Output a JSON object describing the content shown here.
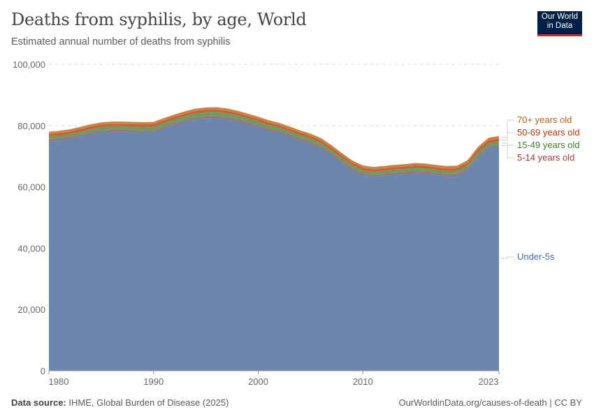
{
  "header": {
    "title": "Deaths from syphilis, by age, World",
    "subtitle": "Estimated annual number of deaths from syphilis",
    "logo": "Our World in Data"
  },
  "footer": {
    "source_label": "Data source:",
    "source": "IHME, Global Burden of Disease (2025)",
    "link": "OurWorldinData.org/causes-of-death | CC BY"
  },
  "chart_data": {
    "type": "area",
    "stacked": true,
    "title": "Deaths from syphilis, by age, World",
    "subtitle": "Estimated annual number of deaths from syphilis",
    "xlim": [
      1980,
      2023
    ],
    "ylim": [
      0,
      100000
    ],
    "x_ticks": [
      "1980",
      "1990",
      "2000",
      "2010",
      "2023"
    ],
    "y_ticks": [
      "0",
      "20,000",
      "40,000",
      "60,000",
      "80,000",
      "100,000"
    ],
    "grid": "horizontal dashed",
    "legend": "right, inline labels",
    "x": [
      1980,
      1981,
      1982,
      1983,
      1984,
      1985,
      1986,
      1987,
      1988,
      1989,
      1990,
      1991,
      1992,
      1993,
      1994,
      1995,
      1996,
      1997,
      1998,
      1999,
      2000,
      2001,
      2002,
      2003,
      2004,
      2005,
      2006,
      2007,
      2008,
      2009,
      2010,
      2011,
      2012,
      2013,
      2014,
      2015,
      2016,
      2017,
      2018,
      2019,
      2020,
      2021,
      2022,
      2023
    ],
    "series": [
      {
        "name": "Under-5s",
        "color": "#6d86ae",
        "label_color": "#4c6a9c",
        "values": [
          75000,
          75300,
          75800,
          76500,
          77300,
          77900,
          78100,
          78100,
          78000,
          77900,
          78000,
          79200,
          80300,
          81300,
          82100,
          82500,
          82600,
          82200,
          81500,
          80600,
          79600,
          78500,
          77700,
          76500,
          75300,
          74200,
          72800,
          70500,
          67900,
          65500,
          63900,
          63400,
          63700,
          64100,
          64300,
          64700,
          64500,
          64000,
          63600,
          63700,
          65500,
          69800,
          72700,
          73300
        ]
      },
      {
        "name": "5-14 years old",
        "color": "#b05f63",
        "label_color": "#a13b3b",
        "values": [
          400,
          400,
          400,
          400,
          400,
          400,
          400,
          400,
          400,
          400,
          400,
          400,
          400,
          400,
          400,
          400,
          400,
          400,
          400,
          400,
          400,
          400,
          400,
          400,
          400,
          400,
          400,
          400,
          400,
          400,
          400,
          400,
          400,
          400,
          400,
          400,
          400,
          400,
          400,
          400,
          400,
          400,
          400,
          400
        ]
      },
      {
        "name": "15-49 years old",
        "color": "#6e9a63",
        "label_color": "#3f7a31",
        "values": [
          1100,
          1100,
          1100,
          1150,
          1200,
          1250,
          1300,
          1300,
          1300,
          1300,
          1300,
          1350,
          1400,
          1450,
          1500,
          1500,
          1500,
          1500,
          1450,
          1400,
          1400,
          1350,
          1300,
          1300,
          1250,
          1250,
          1200,
          1200,
          1200,
          1200,
          1200,
          1200,
          1200,
          1200,
          1200,
          1200,
          1200,
          1200,
          1200,
          1200,
          1200,
          1200,
          1200,
          1200
        ]
      },
      {
        "name": "50-69 years old",
        "color": "#cc5a35",
        "label_color": "#b2380a",
        "values": [
          700,
          700,
          700,
          700,
          700,
          700,
          700,
          700,
          700,
          700,
          700,
          700,
          700,
          700,
          700,
          700,
          700,
          700,
          700,
          700,
          700,
          700,
          700,
          700,
          700,
          700,
          700,
          700,
          700,
          700,
          700,
          700,
          700,
          700,
          700,
          700,
          700,
          750,
          750,
          750,
          750,
          800,
          800,
          800
        ]
      },
      {
        "name": "70+ years old",
        "color": "#c98240",
        "label_color": "#b25e1e",
        "values": [
          800,
          800,
          800,
          800,
          800,
          800,
          800,
          800,
          800,
          800,
          800,
          800,
          800,
          800,
          800,
          800,
          800,
          800,
          800,
          800,
          800,
          800,
          800,
          800,
          800,
          800,
          800,
          800,
          800,
          800,
          800,
          800,
          800,
          800,
          800,
          800,
          800,
          800,
          850,
          850,
          850,
          900,
          900,
          900
        ]
      }
    ]
  }
}
